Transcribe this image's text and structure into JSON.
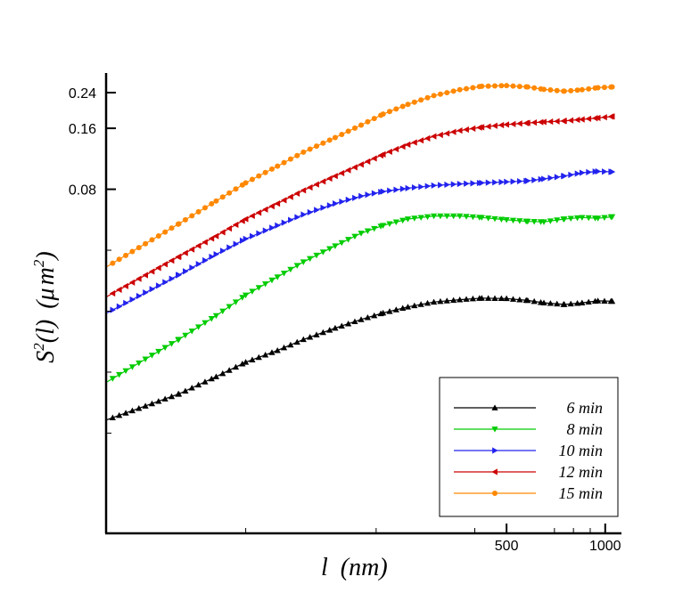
{
  "chart_data": {
    "type": "line",
    "xlabel_main": "l",
    "xlabel_unit": "(nm)",
    "ylabel_main": "S",
    "ylabel_sup": "2",
    "ylabel_arg": "(l)",
    "ylabel_unit_open": "(",
    "ylabel_unit_mu": "μ",
    "ylabel_unit_m": "m",
    "ylabel_unit_sup": "2",
    "ylabel_unit_close": ")",
    "x_scale": "log",
    "y_scale": "log",
    "xlim": [
      30,
      1100
    ],
    "ylim": [
      0.0016,
      0.3
    ],
    "x_ticks": [
      {
        "value": 500,
        "label": "500"
      },
      {
        "value": 1000,
        "label": "1000"
      }
    ],
    "x_minor_ticks": [
      80,
      200,
      400,
      700,
      800,
      900
    ],
    "y_ticks": [
      {
        "value": 0.24,
        "label": "0.24"
      },
      {
        "value": 0.16,
        "label": "0.16"
      },
      {
        "value": 0.08,
        "label": "0.08"
      }
    ],
    "y_minor_ticks": [
      0.04,
      0.02,
      0.01,
      0.005
    ],
    "legend_position": "bottom-right",
    "series": [
      {
        "name": "6  min",
        "color": "#000000",
        "marker": "triangle-up",
        "points": [
          [
            30,
            0.0058
          ],
          [
            50,
            0.0078
          ],
          [
            65,
            0.0095
          ],
          [
            80,
            0.0112
          ],
          [
            100,
            0.0128
          ],
          [
            120,
            0.0145
          ],
          [
            150,
            0.0165
          ],
          [
            180,
            0.0182
          ],
          [
            210,
            0.0196
          ],
          [
            250,
            0.021
          ],
          [
            300,
            0.0222
          ],
          [
            360,
            0.0228
          ],
          [
            420,
            0.0232
          ],
          [
            500,
            0.0231
          ],
          [
            580,
            0.0226
          ],
          [
            650,
            0.022
          ],
          [
            750,
            0.0216
          ],
          [
            850,
            0.022
          ],
          [
            950,
            0.0225
          ],
          [
            1050,
            0.0224
          ]
        ]
      },
      {
        "name": "8  min",
        "color": "#00cc00",
        "marker": "triangle-down",
        "points": [
          [
            30,
            0.0089
          ],
          [
            50,
            0.0145
          ],
          [
            65,
            0.019
          ],
          [
            80,
            0.024
          ],
          [
            100,
            0.0295
          ],
          [
            120,
            0.035
          ],
          [
            150,
            0.042
          ],
          [
            180,
            0.0485
          ],
          [
            210,
            0.053
          ],
          [
            250,
            0.057
          ],
          [
            300,
            0.059
          ],
          [
            360,
            0.059
          ],
          [
            420,
            0.058
          ],
          [
            500,
            0.0565
          ],
          [
            580,
            0.0555
          ],
          [
            650,
            0.0552
          ],
          [
            750,
            0.057
          ],
          [
            850,
            0.058
          ],
          [
            950,
            0.0575
          ],
          [
            1050,
            0.0585
          ]
        ]
      },
      {
        "name": "10  min",
        "color": "#2222ee",
        "marker": "triangle-right",
        "points": [
          [
            30,
            0.0195
          ],
          [
            50,
            0.0302
          ],
          [
            65,
            0.0382
          ],
          [
            80,
            0.0455
          ],
          [
            100,
            0.053
          ],
          [
            120,
            0.06
          ],
          [
            150,
            0.068
          ],
          [
            180,
            0.074
          ],
          [
            210,
            0.078
          ],
          [
            250,
            0.081
          ],
          [
            300,
            0.0835
          ],
          [
            360,
            0.085
          ],
          [
            420,
            0.086
          ],
          [
            500,
            0.087
          ],
          [
            580,
            0.088
          ],
          [
            650,
            0.09
          ],
          [
            750,
            0.093
          ],
          [
            850,
            0.0965
          ],
          [
            950,
            0.098
          ],
          [
            1050,
            0.0975
          ]
        ]
      },
      {
        "name": "12  min",
        "color": "#cc0000",
        "marker": "triangle-left",
        "points": [
          [
            30,
            0.0235
          ],
          [
            50,
            0.0372
          ],
          [
            65,
            0.047
          ],
          [
            80,
            0.057
          ],
          [
            100,
            0.068
          ],
          [
            120,
            0.079
          ],
          [
            150,
            0.093
          ],
          [
            180,
            0.106
          ],
          [
            210,
            0.119
          ],
          [
            250,
            0.133
          ],
          [
            300,
            0.146
          ],
          [
            360,
            0.156
          ],
          [
            420,
            0.162
          ],
          [
            500,
            0.167
          ],
          [
            580,
            0.17
          ],
          [
            650,
            0.172
          ],
          [
            750,
            0.174
          ],
          [
            850,
            0.177
          ],
          [
            950,
            0.18
          ],
          [
            1050,
            0.183
          ]
        ]
      },
      {
        "name": "15  min",
        "color": "#ff8800",
        "marker": "circle",
        "points": [
          [
            30,
            0.033
          ],
          [
            50,
            0.054
          ],
          [
            65,
            0.07
          ],
          [
            80,
            0.086
          ],
          [
            100,
            0.104
          ],
          [
            120,
            0.122
          ],
          [
            150,
            0.144
          ],
          [
            180,
            0.166
          ],
          [
            210,
            0.188
          ],
          [
            250,
            0.21
          ],
          [
            300,
            0.232
          ],
          [
            360,
            0.248
          ],
          [
            420,
            0.258
          ],
          [
            500,
            0.26
          ],
          [
            580,
            0.256
          ],
          [
            650,
            0.249
          ],
          [
            750,
            0.244
          ],
          [
            850,
            0.248
          ],
          [
            950,
            0.254
          ],
          [
            1050,
            0.256
          ]
        ]
      }
    ]
  }
}
